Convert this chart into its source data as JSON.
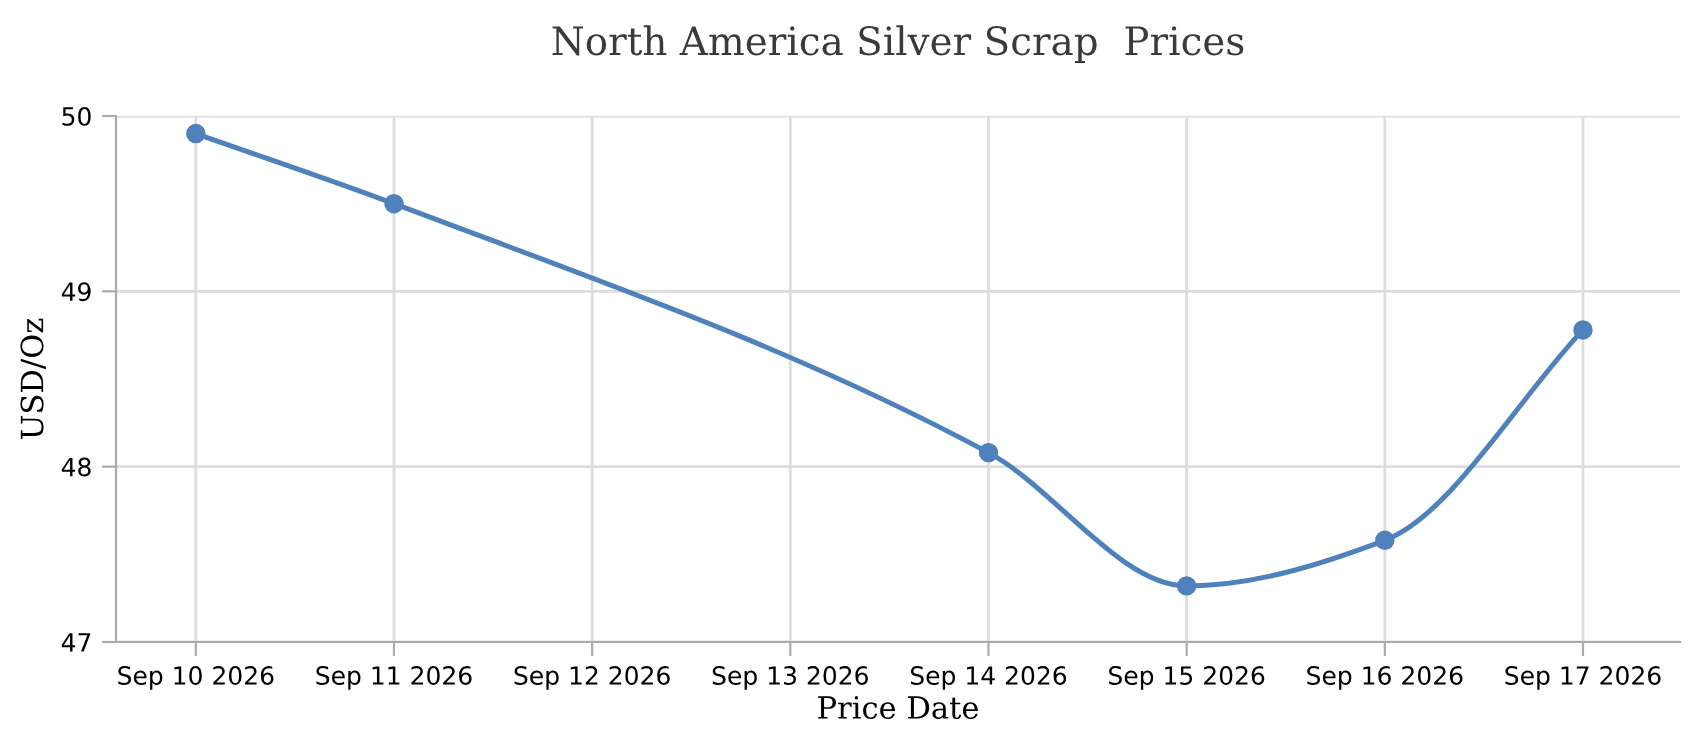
{
  "chart_data": {
    "type": "line",
    "title": "North America Silver Scrap  Prices",
    "xlabel": "Price Date",
    "ylabel": "USD/Oz",
    "x": [
      "2026-09-10",
      "2026-09-11",
      "2026-09-14",
      "2026-09-15",
      "2026-09-16",
      "2026-09-17"
    ],
    "series": [
      {
        "color": "#4f81bc",
        "values": [
          49.9,
          49.5,
          48.08,
          47.32,
          47.58,
          48.78
        ]
      }
    ],
    "xlim": [
      "2026-09-09T14:20",
      "2026-09-17T11:45"
    ],
    "xticks": [
      {
        "value": "2026-09-10",
        "label": "Sep 10 2026"
      },
      {
        "value": "2026-09-11",
        "label": "Sep 11 2026"
      },
      {
        "value": "2026-09-12",
        "label": "Sep 12 2026"
      },
      {
        "value": "2026-09-13",
        "label": "Sep 13 2026"
      },
      {
        "value": "2026-09-14",
        "label": "Sep 14 2026"
      },
      {
        "value": "2026-09-15",
        "label": "Sep 15 2026"
      },
      {
        "value": "2026-09-16",
        "label": "Sep 16 2026"
      },
      {
        "value": "2026-09-17",
        "label": "Sep 17 2026"
      }
    ],
    "ylim": [
      47,
      50
    ],
    "yticks": [
      47,
      48,
      49,
      50
    ],
    "grid": true,
    "marker": "circle",
    "line_style": "solid"
  }
}
